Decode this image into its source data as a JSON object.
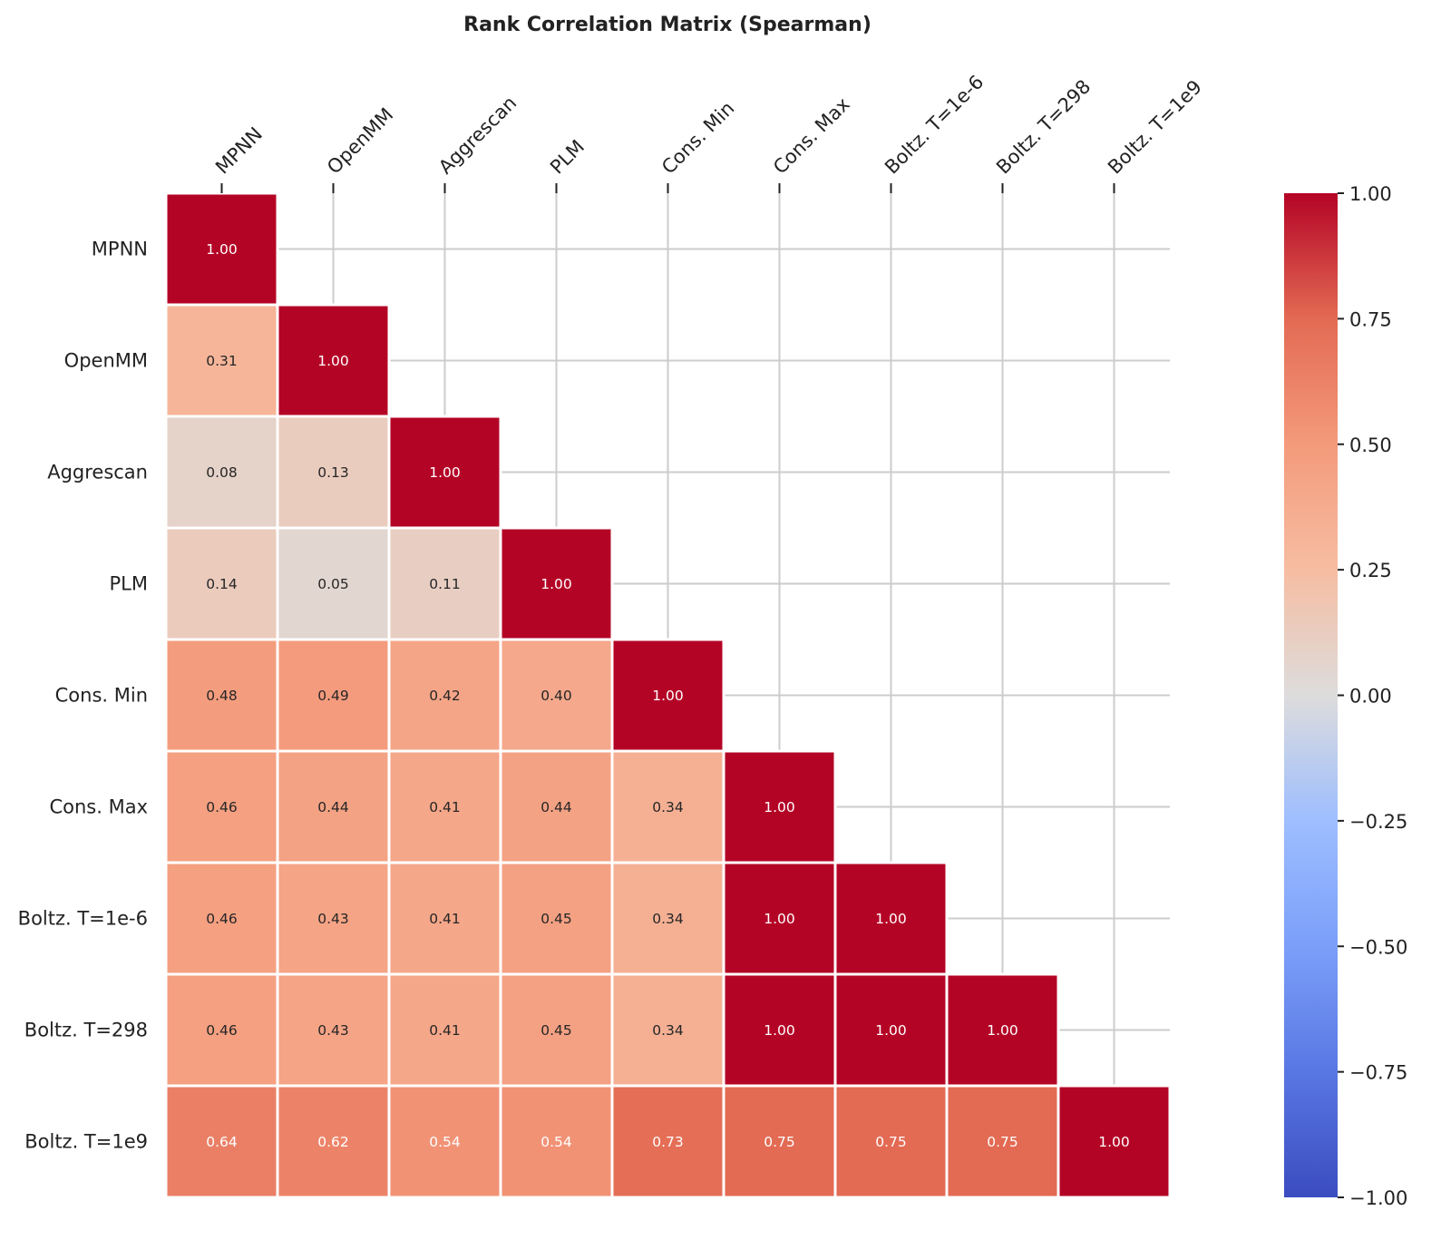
{
  "chart_data": {
    "type": "heatmap",
    "title": "Rank Correlation Matrix (Spearman)",
    "labels": [
      "MPNN",
      "OpenMM",
      "Aggrescan",
      "PLM",
      "Cons. Min",
      "Cons. Max",
      "Boltz. T=1e-6",
      "Boltz. T=298",
      "Boltz. T=1e9"
    ],
    "matrix": [
      [
        1.0
      ],
      [
        0.31,
        1.0
      ],
      [
        0.08,
        0.13,
        1.0
      ],
      [
        0.14,
        0.05,
        0.11,
        1.0
      ],
      [
        0.48,
        0.49,
        0.42,
        0.4,
        1.0
      ],
      [
        0.46,
        0.44,
        0.41,
        0.44,
        0.34,
        1.0
      ],
      [
        0.46,
        0.43,
        0.41,
        0.45,
        0.34,
        1.0,
        1.0
      ],
      [
        0.46,
        0.43,
        0.41,
        0.45,
        0.34,
        1.0,
        1.0,
        1.0
      ],
      [
        0.64,
        0.62,
        0.54,
        0.54,
        0.73,
        0.75,
        0.75,
        0.75,
        1.0
      ]
    ],
    "mask": "upper-triangle",
    "colormap": "coolwarm",
    "vmin": -1.0,
    "vmax": 1.0,
    "colorbar_ticks": [
      "1.00",
      "0.75",
      "0.50",
      "0.25",
      "0.00",
      "−0.25",
      "−0.50",
      "−0.75",
      "−1.00"
    ],
    "colorbar_tick_values": [
      1.0,
      0.75,
      0.5,
      0.25,
      0.0,
      -0.25,
      -0.5,
      -0.75,
      -1.0
    ]
  }
}
